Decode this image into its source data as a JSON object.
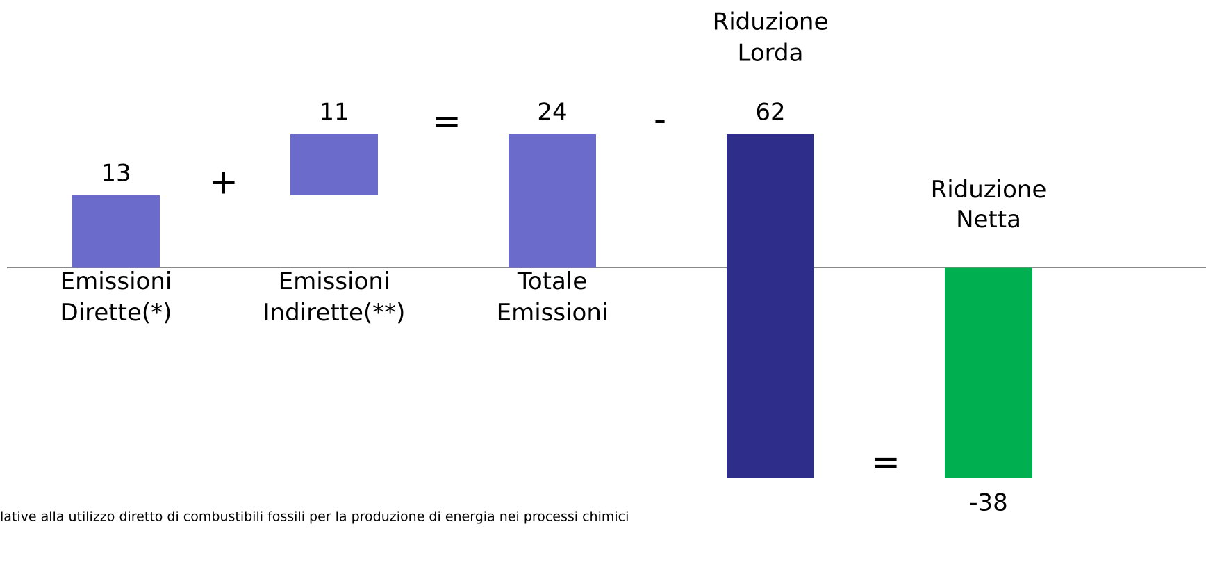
{
  "chart_data": {
    "type": "waterfall",
    "categories": [
      [
        "Emissioni",
        "Dirette(*)"
      ],
      [
        "Emissioni",
        "Indirette(**)"
      ],
      [
        "Totale",
        "Emissioni"
      ],
      [
        "Riduzione",
        "Lorda"
      ],
      [
        "Riduzione",
        "Netta"
      ]
    ],
    "values": [
      13,
      11,
      24,
      62,
      -38
    ],
    "operators": [
      "+",
      "=",
      "-",
      "="
    ],
    "colors": [
      "#6b6bcc",
      "#6b6bcc",
      "#6b6bcc",
      "#2e2e8a",
      "#00b050"
    ],
    "footnote": "lative alla utilizzo diretto di combustibili fossili per la produzione di energia nei processi chimici"
  }
}
